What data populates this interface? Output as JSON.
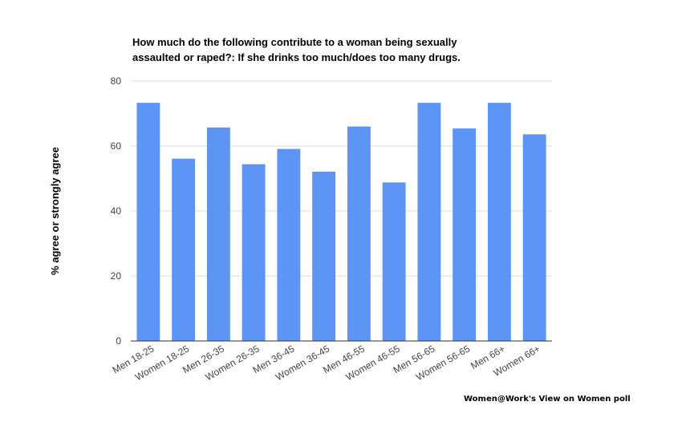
{
  "chart_data": {
    "type": "bar",
    "title_lines": [
      "How much do the following contribute to a woman being sexually",
      "assaulted or raped?: If she drinks too much/does too many drugs."
    ],
    "xlabel": "",
    "ylabel": "% agree or strongly agree",
    "ylim": [
      0,
      80
    ],
    "yticks": [
      0,
      20,
      40,
      60,
      80
    ],
    "grid": true,
    "legend": "none",
    "categories": [
      "Men 18-25",
      "Women 18-25",
      "Men 26-35",
      "Women 26-35",
      "Men 36-45",
      "Women 36-45",
      "Men 46-55",
      "Women 46-55",
      "Men 56-65",
      "Women 56-65",
      "Men 66+",
      "Women 66+"
    ],
    "values": [
      73.3,
      56.1,
      65.7,
      54.4,
      59.1,
      52.1,
      66.0,
      48.8,
      73.3,
      65.4,
      73.3,
      63.6
    ],
    "colors": {
      "bar": "#5c95f5",
      "grid": "#dddddd",
      "baseline": "#333333"
    }
  },
  "footer": {
    "source": "Women@Work's View on Women poll"
  }
}
